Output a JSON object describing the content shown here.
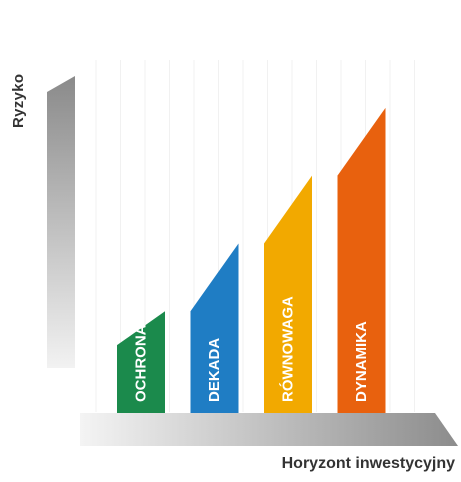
{
  "chart_data": {
    "type": "bar",
    "ylabel": "Ryzyko",
    "xlabel": "Horyzont inwestycyjny",
    "categories": [
      "OCHRONA",
      "DEKADA",
      "RÓWNOWAGA",
      "DYNAMIKA"
    ],
    "start_values": [
      1.0,
      1.5,
      2.5,
      3.5
    ],
    "end_values": [
      1.5,
      2.5,
      3.5,
      4.5
    ],
    "colors": [
      "#1b8a4c",
      "#1f7dc4",
      "#f2a900",
      "#e8610e"
    ],
    "ylim": [
      0,
      5.5
    ],
    "grid": true,
    "legend": "none"
  }
}
